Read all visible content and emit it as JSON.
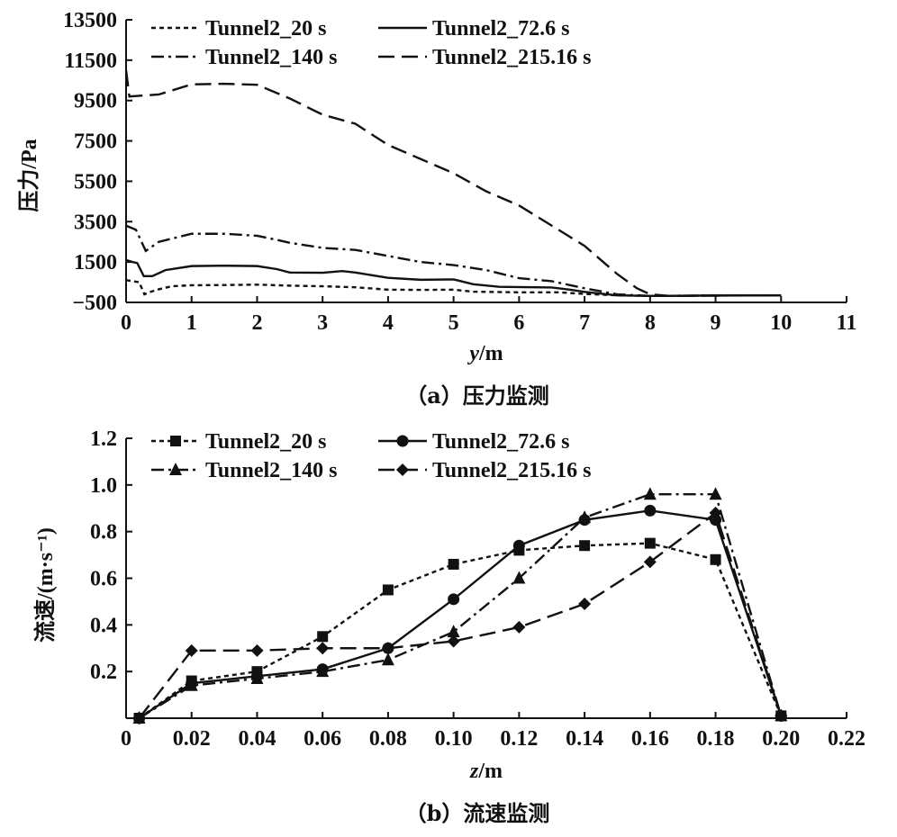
{
  "chart_data": [
    {
      "type": "line",
      "caption": "（a）压力监测",
      "xlabel_italic": "y",
      "xlabel_unit": "/m",
      "ylabel": "压力/Pa",
      "xlim": [
        0,
        11
      ],
      "ylim": [
        -500,
        13500
      ],
      "xticks": [
        "0",
        "1",
        "2",
        "3",
        "4",
        "5",
        "6",
        "7",
        "8",
        "9",
        "10",
        "11"
      ],
      "xtick_values": [
        0,
        1,
        2,
        3,
        4,
        5,
        6,
        7,
        8,
        9,
        10,
        11
      ],
      "yticks": [
        "13500",
        "11500",
        "9500",
        "7500",
        "5500",
        "3500",
        "1500",
        "−500"
      ],
      "ytick_values": [
        13500,
        11500,
        9500,
        7500,
        5500,
        3500,
        1500,
        -500
      ],
      "legend_position": "top",
      "series": [
        {
          "name": "Tunnel2_20 s",
          "style": "dotted",
          "points": [
            [
              0,
              600
            ],
            [
              0.1,
              550
            ],
            [
              0.2,
              500
            ],
            [
              0.28,
              -100
            ],
            [
              0.35,
              0
            ],
            [
              0.5,
              150
            ],
            [
              0.7,
              300
            ],
            [
              1.0,
              350
            ],
            [
              1.5,
              360
            ],
            [
              2.0,
              380
            ],
            [
              2.5,
              330
            ],
            [
              3.0,
              300
            ],
            [
              3.5,
              250
            ],
            [
              4.0,
              130
            ],
            [
              4.5,
              120
            ],
            [
              5.0,
              130
            ],
            [
              5.3,
              30
            ],
            [
              6.0,
              0
            ],
            [
              6.6,
              0
            ],
            [
              7.0,
              -80
            ],
            [
              7.5,
              -150
            ],
            [
              8.0,
              -180
            ],
            [
              9.0,
              -160
            ],
            [
              10.0,
              -150
            ]
          ]
        },
        {
          "name": "Tunnel2_72.6 s",
          "style": "solid",
          "points": [
            [
              0,
              1600
            ],
            [
              0.1,
              1500
            ],
            [
              0.17,
              1450
            ],
            [
              0.27,
              800
            ],
            [
              0.4,
              800
            ],
            [
              0.6,
              1100
            ],
            [
              1.0,
              1300
            ],
            [
              1.5,
              1320
            ],
            [
              2.0,
              1300
            ],
            [
              2.3,
              1150
            ],
            [
              2.5,
              980
            ],
            [
              3.0,
              970
            ],
            [
              3.3,
              1050
            ],
            [
              3.5,
              980
            ],
            [
              4.0,
              720
            ],
            [
              4.5,
              620
            ],
            [
              5.0,
              640
            ],
            [
              5.3,
              400
            ],
            [
              5.7,
              270
            ],
            [
              6.5,
              240
            ],
            [
              6.8,
              120
            ],
            [
              7.0,
              20
            ],
            [
              7.5,
              -150
            ],
            [
              8.0,
              -180
            ],
            [
              9.0,
              -160
            ],
            [
              10.0,
              -150
            ]
          ]
        },
        {
          "name": "Tunnel2_140 s",
          "style": "dashdot",
          "points": [
            [
              0,
              3300
            ],
            [
              0.15,
              3100
            ],
            [
              0.3,
              2050
            ],
            [
              0.5,
              2500
            ],
            [
              1.0,
              2900
            ],
            [
              1.5,
              2900
            ],
            [
              2.0,
              2800
            ],
            [
              2.3,
              2600
            ],
            [
              2.5,
              2450
            ],
            [
              3.0,
              2200
            ],
            [
              3.5,
              2100
            ],
            [
              4.0,
              1800
            ],
            [
              4.5,
              1500
            ],
            [
              5.0,
              1350
            ],
            [
              5.5,
              1100
            ],
            [
              6.0,
              700
            ],
            [
              6.5,
              550
            ],
            [
              7.0,
              200
            ],
            [
              7.5,
              -100
            ],
            [
              8.0,
              -180
            ],
            [
              9.0,
              -160
            ],
            [
              10.0,
              -150
            ]
          ]
        },
        {
          "name": "Tunnel2_215.16 s",
          "style": "dashed",
          "points": [
            [
              0,
              11000
            ],
            [
              0.05,
              9700
            ],
            [
              0.5,
              9800
            ],
            [
              1.0,
              10300
            ],
            [
              1.5,
              10330
            ],
            [
              2.0,
              10280
            ],
            [
              2.5,
              9600
            ],
            [
              3.0,
              8800
            ],
            [
              3.5,
              8350
            ],
            [
              4.0,
              7300
            ],
            [
              4.5,
              6600
            ],
            [
              5.0,
              5900
            ],
            [
              5.5,
              5000
            ],
            [
              6.0,
              4300
            ],
            [
              6.5,
              3300
            ],
            [
              7.0,
              2300
            ],
            [
              7.5,
              900
            ],
            [
              7.8,
              200
            ],
            [
              8.0,
              -100
            ],
            [
              8.3,
              -180
            ],
            [
              9.0,
              -160
            ],
            [
              10.0,
              -150
            ]
          ]
        }
      ]
    },
    {
      "type": "line",
      "caption": "（b）流速监测",
      "xlabel_italic": "z",
      "xlabel_unit": "/m",
      "ylabel": "流速/(m·s⁻¹)",
      "xlim": [
        0,
        0.22
      ],
      "ylim": [
        0,
        1.2
      ],
      "xticks": [
        "0",
        "0.02",
        "0.04",
        "0.06",
        "0.08",
        "0.10",
        "0.12",
        "0.14",
        "0.16",
        "0.18",
        "0.20",
        "0.22"
      ],
      "xtick_values": [
        0,
        0.02,
        0.04,
        0.06,
        0.08,
        0.1,
        0.12,
        0.14,
        0.16,
        0.18,
        0.2,
        0.22
      ],
      "yticks": [
        "1.2",
        "1.0",
        "0.8",
        "0.6",
        "0.4",
        "0.2"
      ],
      "ytick_values": [
        1.2,
        1.0,
        0.8,
        0.6,
        0.4,
        0.2
      ],
      "legend_position": "top",
      "x": [
        0.004,
        0.02,
        0.04,
        0.06,
        0.08,
        0.1,
        0.12,
        0.14,
        0.16,
        0.18,
        0.2
      ],
      "series": [
        {
          "name": "Tunnel2_20 s",
          "style": "dotted",
          "marker": "square",
          "values": [
            0,
            0.16,
            0.2,
            0.35,
            0.55,
            0.66,
            0.72,
            0.74,
            0.75,
            0.68,
            0.01
          ]
        },
        {
          "name": "Tunnel2_72.6 s",
          "style": "solid",
          "marker": "circle",
          "values": [
            0,
            0.15,
            0.18,
            0.21,
            0.3,
            0.51,
            0.74,
            0.85,
            0.89,
            0.85,
            0.01
          ]
        },
        {
          "name": "Tunnel2_140 s",
          "style": "dashdot",
          "marker": "triangle",
          "values": [
            0,
            0.14,
            0.17,
            0.2,
            0.25,
            0.37,
            0.6,
            0.86,
            0.96,
            0.96,
            0.01
          ]
        },
        {
          "name": "Tunnel2_215.16 s",
          "style": "dashed",
          "marker": "diamond",
          "values": [
            0,
            0.29,
            0.29,
            0.3,
            0.3,
            0.33,
            0.39,
            0.49,
            0.67,
            0.88,
            0.01
          ]
        }
      ]
    }
  ]
}
